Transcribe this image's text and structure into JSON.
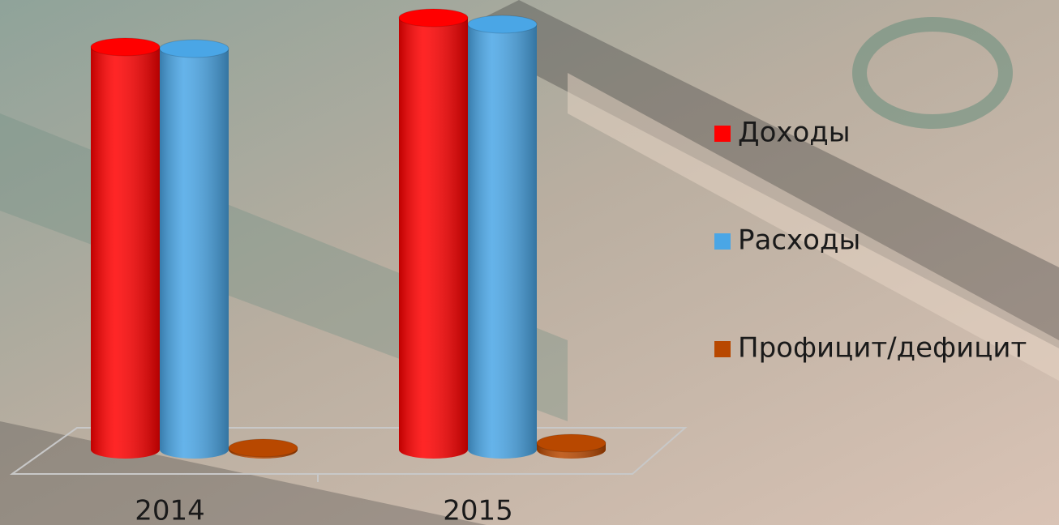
{
  "chart_data": {
    "type": "bar3d",
    "categories": [
      "2014",
      "2015"
    ],
    "series": [
      {
        "name": "Доходы",
        "color": "#ff0000",
        "values": [
          497,
          533
        ]
      },
      {
        "name": "Расходы",
        "color": "#4aa6e6",
        "values": [
          495,
          525
        ]
      },
      {
        "name": "Профицит/дефицит",
        "color": "#b84800",
        "values": [
          2,
          8
        ]
      }
    ],
    "ylim": [
      0,
      550
    ],
    "legend": "right"
  }
}
